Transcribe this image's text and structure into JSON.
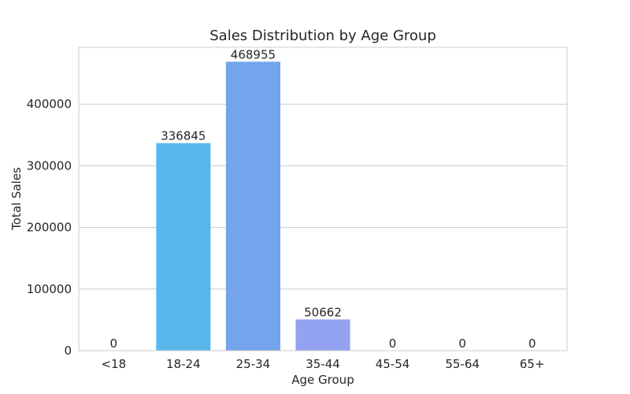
{
  "chart_data": {
    "type": "bar",
    "title": "Sales Distribution by Age Group",
    "xlabel": "Age Group",
    "ylabel": "Total Sales",
    "categories": [
      "<18",
      "18-24",
      "25-34",
      "35-44",
      "45-54",
      "55-64",
      "65+"
    ],
    "values": [
      0,
      336845,
      468955,
      50662,
      0,
      0,
      0
    ],
    "data_labels": [
      "0",
      "336845",
      "468955",
      "50662",
      "0",
      "0",
      "0"
    ],
    "colors": [
      "#3ec6f3",
      "#58b8ec",
      "#73a4ec",
      "#93a3f1",
      "#a39af3",
      "#b493f4",
      "#c28cf4"
    ],
    "ylim": [
      0,
      492403
    ],
    "yticks": [
      0,
      100000,
      200000,
      300000,
      400000
    ],
    "ytick_labels": [
      "0",
      "100000",
      "200000",
      "300000",
      "400000"
    ],
    "grid": true,
    "grid_color": "#cccccc",
    "spine_color": "#cccccc"
  }
}
